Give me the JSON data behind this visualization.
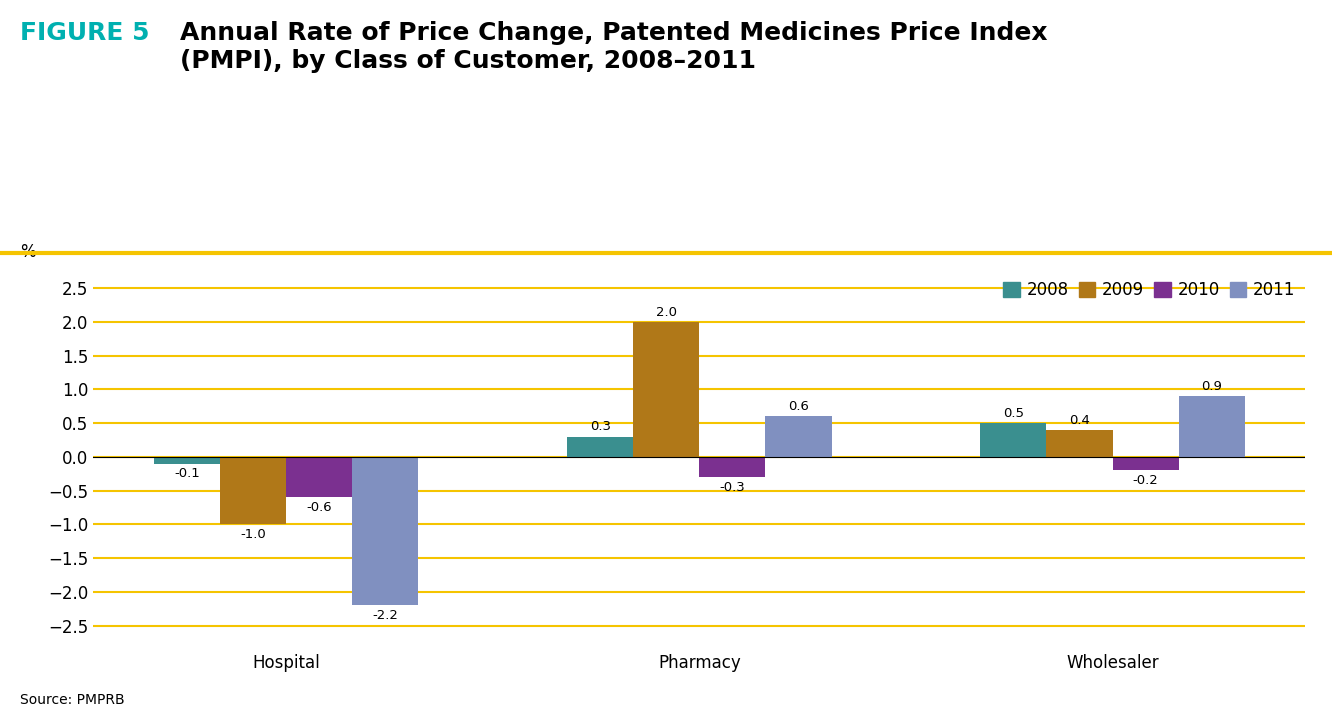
{
  "title_figure": "FIGURE 5",
  "title_main": "Annual Rate of Price Change, Patented Medicines Price Index\n(PMPI), by Class of Customer, 2008–2011",
  "ylabel": "%",
  "ylim": [
    -2.75,
    2.75
  ],
  "yticks": [
    -2.5,
    -2.0,
    -1.5,
    -1.0,
    -0.5,
    0.0,
    0.5,
    1.0,
    1.5,
    2.0,
    2.5
  ],
  "categories": [
    "Hospital",
    "Pharmacy",
    "Wholesaler"
  ],
  "years": [
    "2008",
    "2009",
    "2010",
    "2011"
  ],
  "colors": {
    "2008": "#3a8f8f",
    "2009": "#b07818",
    "2010": "#7b3090",
    "2011": "#8090c0"
  },
  "data": {
    "Hospital": [
      -0.1,
      -1.0,
      -0.6,
      -2.2
    ],
    "Pharmacy": [
      0.3,
      2.0,
      -0.3,
      0.6
    ],
    "Wholesaler": [
      0.5,
      0.4,
      -0.2,
      0.9
    ]
  },
  "source": "Source: PMPRB",
  "background_color": "#ffffff",
  "grid_color": "#f5c400",
  "title_figure_color": "#00b0b0",
  "title_figure_fontsize": 18,
  "title_main_fontsize": 18,
  "bar_width": 0.12,
  "label_fontsize": 9.5,
  "tick_fontsize": 12,
  "legend_fontsize": 12,
  "source_fontsize": 10
}
